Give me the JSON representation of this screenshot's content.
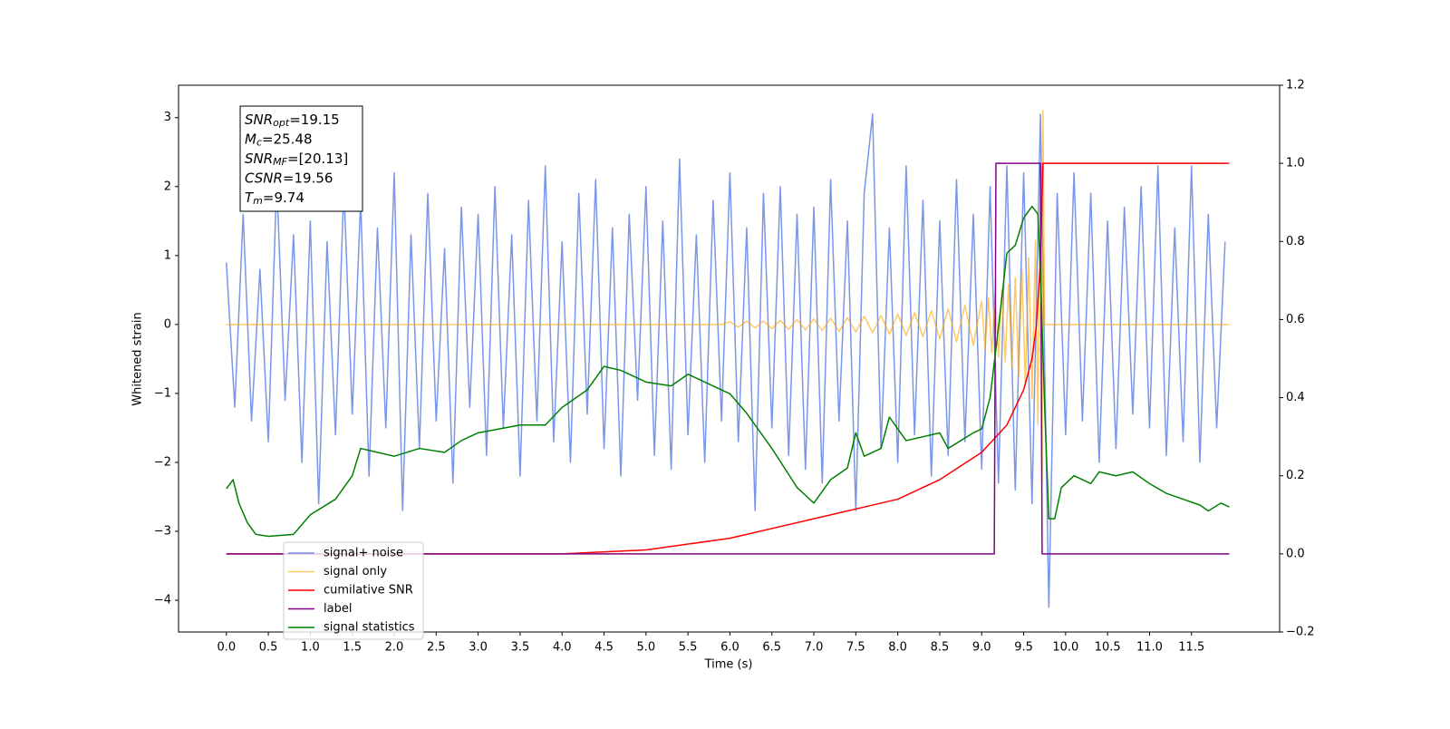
{
  "chart_data": {
    "type": "line",
    "xlabel": "Time (s)",
    "ylabel": "Whitened strain",
    "xlim": [
      -0.57,
      12.55
    ],
    "ylim": [
      -4.46,
      3.47
    ],
    "y2lim": [
      -0.2,
      1.2
    ],
    "xticks": [
      {
        "value": 0,
        "label": "0.0"
      },
      0.5,
      {
        "value": 1,
        "label": "1.0"
      },
      1.5,
      {
        "value": 2,
        "label": "2.0"
      },
      2.5,
      {
        "value": 3,
        "label": "3.0"
      },
      3.5,
      {
        "value": 4,
        "label": "4.0"
      },
      4.5,
      {
        "value": 5,
        "label": "5.0"
      },
      5.5,
      {
        "value": 6,
        "label": "6.0"
      },
      6.5,
      {
        "value": 7,
        "label": "7.0"
      },
      7.5,
      {
        "value": 8,
        "label": "8.0"
      },
      8.5,
      {
        "value": 9,
        "label": "9.0"
      },
      9.5,
      {
        "value": 10,
        "label": "10.0"
      },
      10.5,
      {
        "value": 11,
        "label": "11.0"
      },
      11.5
    ],
    "yticks": [
      {
        "value": -4,
        "label": "−4"
      },
      {
        "value": -3,
        "label": "−3"
      },
      {
        "value": -2,
        "label": "−2"
      },
      {
        "value": -1,
        "label": "−1"
      },
      0,
      1,
      2,
      3
    ],
    "y2ticks": [
      {
        "value": -0.2,
        "label": "−0.2"
      },
      {
        "value": 0,
        "label": "0.0"
      },
      0.2,
      0.4,
      0.6,
      0.8,
      {
        "value": 1,
        "label": "1.0"
      },
      1.2
    ],
    "legend_loc": "lower left",
    "annotations": [
      {
        "base": "SNR",
        "sub": "opt",
        "rest": "=19.15"
      },
      {
        "base": "M",
        "sub": "c",
        "rest": "=25.48"
      },
      {
        "base": "SNR",
        "sub": "MF",
        "rest": "=[20.13]"
      },
      {
        "base": "CSNR",
        "sub": "",
        "rest": "=19.56"
      },
      {
        "base": "T",
        "sub": "m",
        "rest": "=9.74"
      }
    ],
    "series": [
      {
        "name": "signal+ noise",
        "color": "#4169e1",
        "alpha": 0.7,
        "axis": "y",
        "x": [
          0.0,
          0.1,
          0.2,
          0.3,
          0.4,
          0.5,
          0.6,
          0.7,
          0.8,
          0.9,
          1.0,
          1.1,
          1.2,
          1.3,
          1.4,
          1.5,
          1.6,
          1.7,
          1.8,
          1.9,
          2.0,
          2.1,
          2.2,
          2.3,
          2.4,
          2.5,
          2.6,
          2.7,
          2.8,
          2.9,
          3.0,
          3.1,
          3.2,
          3.3,
          3.4,
          3.5,
          3.6,
          3.7,
          3.8,
          3.9,
          4.0,
          4.1,
          4.2,
          4.3,
          4.4,
          4.5,
          4.6,
          4.7,
          4.8,
          4.9,
          5.0,
          5.1,
          5.2,
          5.3,
          5.4,
          5.5,
          5.6,
          5.7,
          5.8,
          5.9,
          6.0,
          6.1,
          6.2,
          6.3,
          6.4,
          6.5,
          6.6,
          6.7,
          6.8,
          6.9,
          7.0,
          7.1,
          7.2,
          7.3,
          7.4,
          7.5,
          7.6,
          7.7,
          7.8,
          7.9,
          8.0,
          8.1,
          8.2,
          8.3,
          8.4,
          8.5,
          8.6,
          8.7,
          8.8,
          8.9,
          9.0,
          9.1,
          9.2,
          9.3,
          9.4,
          9.5,
          9.6,
          9.7,
          9.8,
          9.9,
          10.0,
          10.1,
          10.2,
          10.3,
          10.4,
          10.5,
          10.6,
          10.7,
          10.8,
          10.9,
          11.0,
          11.1,
          11.2,
          11.3,
          11.4,
          11.5,
          11.6,
          11.7,
          11.8,
          11.9
        ],
        "values": [
          0.9,
          -1.2,
          1.6,
          -1.4,
          0.8,
          -1.7,
          2.1,
          -1.1,
          1.3,
          -2.0,
          1.5,
          -2.6,
          1.2,
          -1.6,
          2.0,
          -1.3,
          1.8,
          -2.2,
          1.4,
          -1.5,
          2.2,
          -2.7,
          1.3,
          -1.8,
          1.9,
          -1.4,
          1.1,
          -2.3,
          1.7,
          -1.2,
          1.6,
          -1.9,
          2.0,
          -1.5,
          1.3,
          -2.2,
          1.8,
          -1.4,
          2.3,
          -1.7,
          1.2,
          -2.0,
          1.9,
          -1.3,
          2.1,
          -1.8,
          1.4,
          -2.2,
          1.6,
          -1.1,
          2.0,
          -1.9,
          1.5,
          -2.1,
          2.4,
          -1.6,
          1.3,
          -2.0,
          1.8,
          -1.4,
          2.2,
          -1.7,
          1.4,
          -2.7,
          1.9,
          -1.5,
          2.0,
          -1.9,
          1.6,
          -2.1,
          1.7,
          -2.3,
          2.1,
          -1.4,
          1.5,
          -2.7,
          1.9,
          3.05,
          -1.8,
          1.4,
          -2.0,
          2.3,
          -1.6,
          1.8,
          -2.2,
          1.5,
          -1.9,
          2.1,
          -1.7,
          1.6,
          -2.1,
          2.0,
          -2.3,
          2.3,
          -2.4,
          2.2,
          -2.6,
          3.05,
          -4.1,
          1.9,
          -1.6,
          2.2,
          -1.4,
          1.9,
          -2.0,
          1.5,
          -1.8,
          1.7,
          -1.3,
          2.0,
          -1.5,
          2.3,
          -1.9,
          1.4,
          -1.7,
          2.3,
          -2.0,
          1.6,
          -1.5,
          1.2
        ]
      },
      {
        "name": "signal only",
        "color": "#ffa500",
        "alpha": 0.6,
        "axis": "y",
        "x": [
          0,
          5.9,
          6.0,
          6.1,
          6.2,
          6.3,
          6.4,
          6.5,
          6.6,
          6.7,
          6.8,
          6.9,
          7.0,
          7.1,
          7.2,
          7.3,
          7.4,
          7.5,
          7.6,
          7.7,
          7.8,
          7.9,
          8.0,
          8.1,
          8.2,
          8.3,
          8.4,
          8.5,
          8.6,
          8.7,
          8.8,
          8.9,
          9.0,
          9.04,
          9.08,
          9.12,
          9.16,
          9.2,
          9.24,
          9.28,
          9.32,
          9.36,
          9.4,
          9.44,
          9.48,
          9.52,
          9.56,
          9.6,
          9.64,
          9.67,
          9.7,
          9.72,
          9.73,
          9.75,
          11.95
        ],
        "values": [
          0,
          0,
          0.04,
          -0.04,
          0.05,
          -0.05,
          0.05,
          -0.06,
          0.06,
          -0.07,
          0.07,
          -0.08,
          0.08,
          -0.09,
          0.09,
          -0.1,
          0.1,
          -0.11,
          0.12,
          -0.12,
          0.13,
          -0.14,
          0.15,
          -0.16,
          0.17,
          -0.18,
          0.2,
          -0.21,
          0.23,
          -0.25,
          0.28,
          -0.3,
          0.34,
          -0.36,
          0.38,
          -0.41,
          0.44,
          -0.47,
          0.5,
          -0.54,
          0.58,
          -0.63,
          0.68,
          -0.74,
          0.8,
          -0.88,
          0.97,
          -1.08,
          1.22,
          -1.45,
          1.9,
          -2.3,
          3.1,
          0,
          0
        ]
      },
      {
        "name": "cumilative SNR",
        "color": "#ff0000",
        "axis": "y2",
        "x": [
          0,
          4.0,
          5.0,
          6.0,
          7.0,
          8.0,
          8.5,
          9.0,
          9.3,
          9.5,
          9.6,
          9.65,
          9.7,
          9.73,
          11.95
        ],
        "values": [
          0,
          0,
          0.01,
          0.04,
          0.09,
          0.14,
          0.19,
          0.26,
          0.33,
          0.42,
          0.5,
          0.58,
          0.75,
          1.0,
          1.0
        ]
      },
      {
        "name": "label",
        "color": "#800080",
        "axis": "y2",
        "x": [
          0,
          9.15,
          9.17,
          9.7,
          9.72,
          11.95
        ],
        "values": [
          0,
          0,
          1,
          1,
          0,
          0
        ]
      },
      {
        "name": "signal statistics",
        "color": "#008000",
        "axis": "y2",
        "x": [
          0.0,
          0.08,
          0.15,
          0.25,
          0.35,
          0.5,
          0.8,
          1.0,
          1.3,
          1.5,
          1.6,
          1.8,
          2.0,
          2.3,
          2.6,
          2.8,
          3.0,
          3.5,
          3.8,
          4.0,
          4.3,
          4.5,
          4.7,
          5.0,
          5.3,
          5.5,
          5.8,
          6.0,
          6.2,
          6.5,
          6.8,
          7.0,
          7.2,
          7.4,
          7.5,
          7.6,
          7.8,
          7.9,
          8.1,
          8.5,
          8.6,
          8.9,
          9.0,
          9.1,
          9.2,
          9.3,
          9.4,
          9.5,
          9.6,
          9.67,
          9.7,
          9.75,
          9.8,
          9.87,
          9.95,
          10.1,
          10.3,
          10.4,
          10.6,
          10.8,
          11.0,
          11.2,
          11.4,
          11.6,
          11.7,
          11.85,
          11.95
        ],
        "values": [
          0.167,
          0.19,
          0.13,
          0.08,
          0.05,
          0.045,
          0.05,
          0.1,
          0.14,
          0.2,
          0.27,
          0.26,
          0.25,
          0.27,
          0.26,
          0.29,
          0.31,
          0.33,
          0.33,
          0.375,
          0.42,
          0.48,
          0.47,
          0.44,
          0.43,
          0.46,
          0.43,
          0.41,
          0.36,
          0.27,
          0.17,
          0.13,
          0.19,
          0.22,
          0.31,
          0.25,
          0.27,
          0.35,
          0.29,
          0.31,
          0.27,
          0.31,
          0.32,
          0.4,
          0.58,
          0.77,
          0.79,
          0.86,
          0.89,
          0.87,
          0.72,
          0.375,
          0.09,
          0.09,
          0.17,
          0.2,
          0.18,
          0.21,
          0.2,
          0.21,
          0.18,
          0.155,
          0.14,
          0.125,
          0.11,
          0.13,
          0.12
        ]
      }
    ]
  }
}
